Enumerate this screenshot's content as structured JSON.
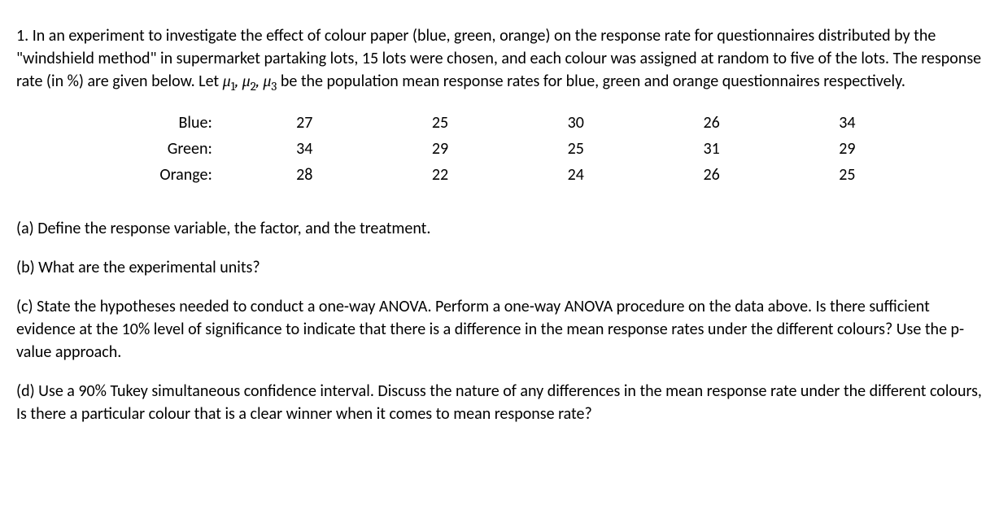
{
  "problem": {
    "intro_pre": "1. In an experiment to investigate the effect of colour paper (blue, green, orange) on the response rate for questionnaires distributed by the \"windshield method\" in supermarket partaking lots, 15 lots were chosen, and each colour was assigned at random to five of the lots. The response rate (in %) are given below. Let ",
    "mu_expr": "μ₁, μ₂, μ₃",
    "intro_post": " be the population mean response rates for blue, green and orange questionnaires respectively."
  },
  "table": {
    "rows": [
      {
        "label": "Blue:",
        "values": [
          "27",
          "25",
          "30",
          "26",
          "34"
        ]
      },
      {
        "label": "Green:",
        "values": [
          "34",
          "29",
          "25",
          "31",
          "29"
        ]
      },
      {
        "label": "Orange:",
        "values": [
          "28",
          "22",
          "24",
          "26",
          "25"
        ]
      }
    ]
  },
  "parts": {
    "a": "(a) Define the response variable, the factor, and the treatment.",
    "b": "(b) What are the experimental units?",
    "c": "(c) State the hypotheses needed to conduct a one-way ANOVA. Perform a one-way ANOVA procedure on the data above. Is there sufficient evidence at the 10% level of significance to indicate that there is a difference in the mean response rates under the different colours? Use the p-value approach.",
    "d": "(d) Use a 90% Tukey simultaneous confidence interval. Discuss the nature of any differences in the mean response rate under the different colours, Is there a particular colour that is a clear winner when it comes to mean response rate?"
  },
  "style": {
    "font_family": "Calibri",
    "font_size_pt": 15,
    "text_color": "#000000",
    "background_color": "#ffffff"
  }
}
